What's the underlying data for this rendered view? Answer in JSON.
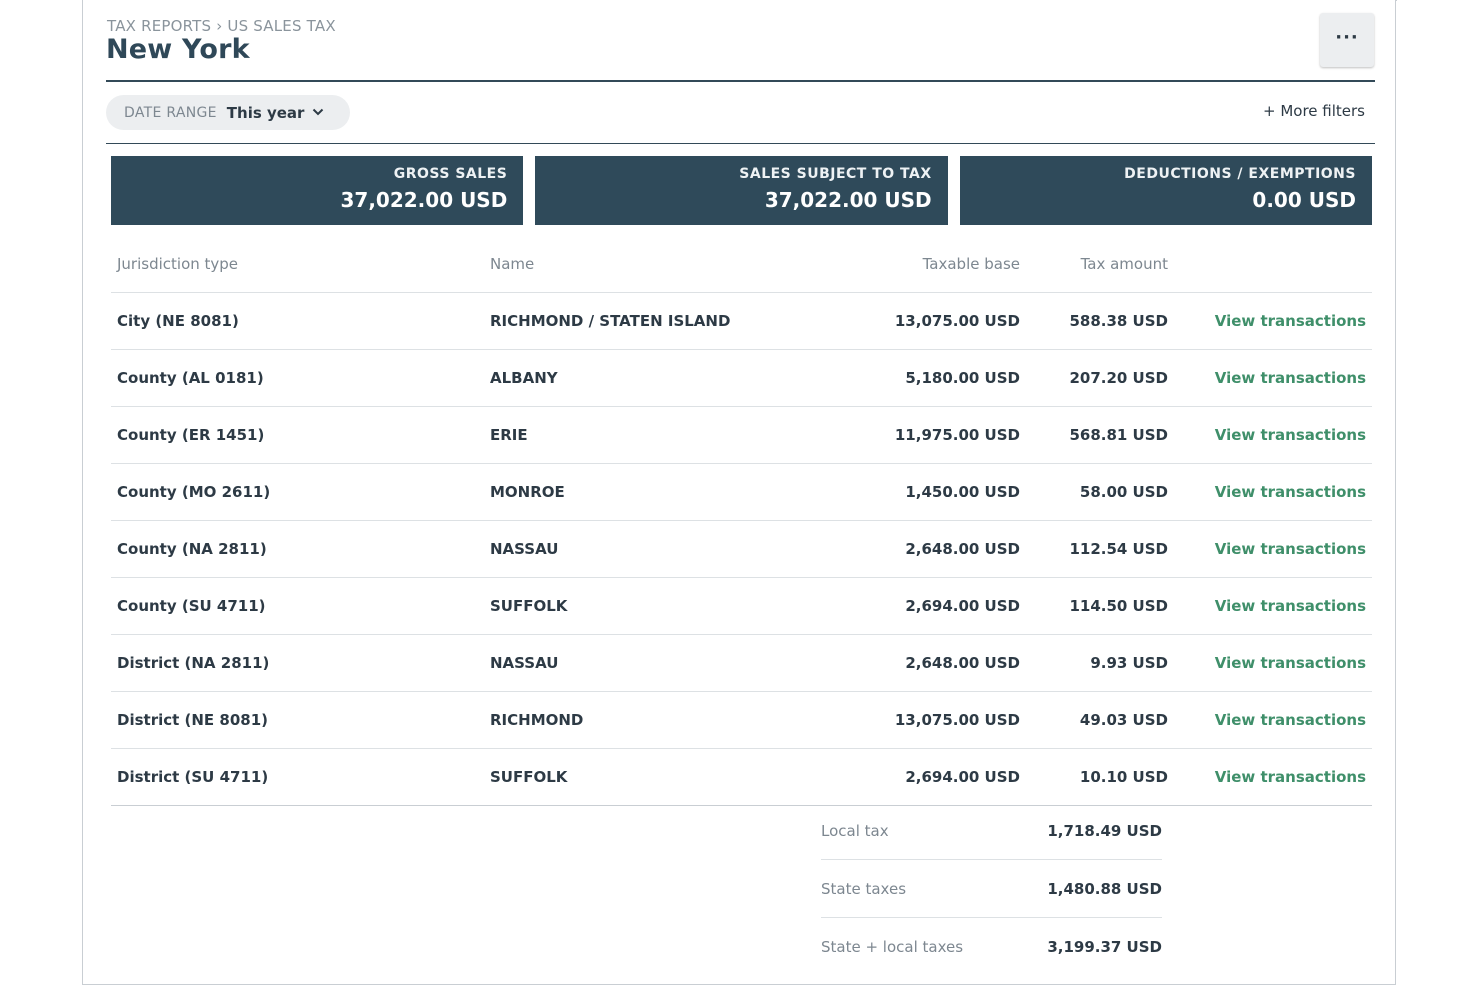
{
  "header": {
    "breadcrumb": "TAX REPORTS › US SALES TAX",
    "title": "New York",
    "more_button_label": "···"
  },
  "filters": {
    "date_range_label": "DATE RANGE",
    "date_range_value": "This year",
    "more_filters_label": "+ More filters"
  },
  "cards": [
    {
      "label": "GROSS SALES",
      "value": "37,022.00 USD"
    },
    {
      "label": "SALES SUBJECT TO TAX",
      "value": "37,022.00 USD"
    },
    {
      "label": "DEDUCTIONS / EXEMPTIONS",
      "value": "0.00 USD"
    }
  ],
  "table": {
    "headers": {
      "type": "Jurisdiction type",
      "name": "Name",
      "base": "Taxable base",
      "tax": "Tax amount"
    },
    "link_label": "View transactions",
    "rows": [
      {
        "type": "City (NE 8081)",
        "name": "RICHMOND / STATEN ISLAND",
        "base": "13,075.00 USD",
        "tax": "588.38 USD"
      },
      {
        "type": "County (AL 0181)",
        "name": "ALBANY",
        "base": "5,180.00 USD",
        "tax": "207.20 USD"
      },
      {
        "type": "County (ER 1451)",
        "name": "ERIE",
        "base": "11,975.00 USD",
        "tax": "568.81 USD"
      },
      {
        "type": "County (MO 2611)",
        "name": "MONROE",
        "base": "1,450.00 USD",
        "tax": "58.00 USD"
      },
      {
        "type": "County (NA 2811)",
        "name": "NASSAU",
        "base": "2,648.00 USD",
        "tax": "112.54 USD"
      },
      {
        "type": "County (SU 4711)",
        "name": "SUFFOLK",
        "base": "2,694.00 USD",
        "tax": "114.50 USD"
      },
      {
        "type": "District (NA 2811)",
        "name": "NASSAU",
        "base": "2,648.00 USD",
        "tax": "9.93 USD"
      },
      {
        "type": "District (NE 8081)",
        "name": "RICHMOND",
        "base": "13,075.00 USD",
        "tax": "49.03 USD"
      },
      {
        "type": "District (SU 4711)",
        "name": "SUFFOLK",
        "base": "2,694.00 USD",
        "tax": "10.10 USD"
      }
    ]
  },
  "summary": [
    {
      "label": "Local tax",
      "value": "1,718.49 USD"
    },
    {
      "label": "State taxes",
      "value": "1,480.88 USD"
    },
    {
      "label": "State + local taxes",
      "value": "3,199.37 USD"
    }
  ],
  "colors": {
    "card_bg": "#2f4a5a",
    "link": "#3f8f6a",
    "title": "#2f4858"
  },
  "icons": {
    "date_dropdown": "chevron-down-icon",
    "more": "ellipsis-icon"
  }
}
